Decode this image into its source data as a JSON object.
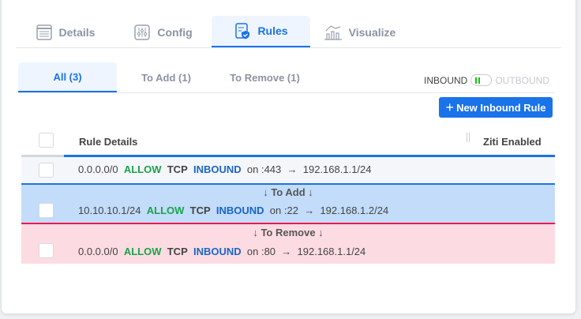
{
  "tabs": [
    {
      "label": "Details",
      "icon": "details-list-icon"
    },
    {
      "label": "Config",
      "icon": "sliders-icon"
    },
    {
      "label": "Rules",
      "icon": "rules-shield-icon",
      "active": true
    },
    {
      "label": "Visualize",
      "icon": "chart-icon"
    }
  ],
  "subtabs": [
    {
      "label": "All (3)",
      "active": true
    },
    {
      "label": "To Add (1)"
    },
    {
      "label": "To Remove (1)"
    }
  ],
  "toggle": {
    "left": "INBOUND",
    "right": "OUTBOUND",
    "value": "INBOUND"
  },
  "new_rule_button": "New Inbound Rule",
  "table": {
    "headers": [
      "Rule Details",
      "Ziti Enabled"
    ]
  },
  "rules": [
    {
      "src": "0.0.0.0/0",
      "action": "ALLOW",
      "proto": "TCP",
      "dir": "INBOUND",
      "on": "on",
      "port": ":443",
      "arrow": "→",
      "dst": "192.168.1.1/24"
    },
    {
      "src": "10.10.10.1/24",
      "action": "ALLOW",
      "proto": "TCP",
      "dir": "INBOUND",
      "on": "on",
      "port": ":22",
      "arrow": "→",
      "dst": "192.168.1.2/24"
    },
    {
      "src": "0.0.0.0/0",
      "action": "ALLOW",
      "proto": "TCP",
      "dir": "INBOUND",
      "on": "on",
      "port": ":80",
      "arrow": "→",
      "dst": "192.168.1.1/24"
    }
  ],
  "sections": {
    "to_add": "↓ To Add ↓",
    "to_remove": "↓ To Remove ↓"
  },
  "colors": {
    "accent": "#1a73e8",
    "allow": "#1aa34a",
    "add_bg": "#c2dcfa",
    "remove_bg": "#fcdce2",
    "remove_line": "#f0174e"
  }
}
